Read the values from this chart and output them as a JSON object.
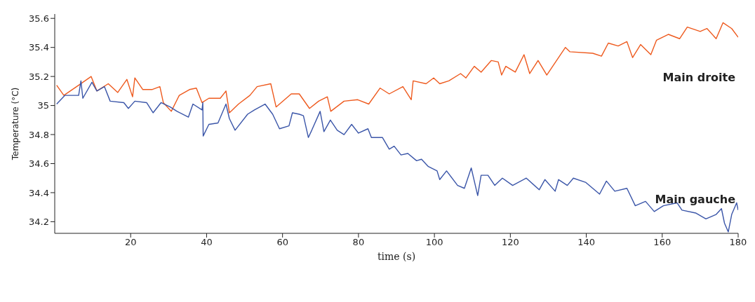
{
  "chart_data": {
    "type": "line",
    "xlabel": "time (s)",
    "ylabel": "Temperature (°C)",
    "xlim": [
      0,
      180
    ],
    "xticks": [
      20,
      40,
      60,
      80,
      100,
      120,
      140,
      160,
      180
    ],
    "ylim": [
      34.12,
      35.63
    ],
    "yticks": [
      34.2,
      34.4,
      34.6,
      34.8,
      35,
      35.2,
      35.4,
      35.6
    ],
    "grid": false,
    "legend": false,
    "marker": "none",
    "line_style": "solid",
    "series": [
      {
        "name": "Main droite",
        "color": "#ee5a1e",
        "x": [
          0.5,
          2.4,
          6.3,
          9.6,
          11.1,
          14.1,
          16.6,
          19.0,
          20.5,
          21.1,
          23.2,
          25.6,
          27.7,
          28.6,
          30.7,
          32.8,
          35.5,
          37.3,
          38.8,
          40.6,
          43.6,
          45.1,
          46.0,
          48.4,
          51.4,
          53.3,
          56.9,
          58.3,
          62.3,
          64.4,
          67.1,
          69.5,
          71.8,
          72.7,
          76.2,
          79.8,
          82.7,
          85.7,
          88.1,
          91.7,
          93.9,
          94.4,
          97.8,
          99.8,
          101.4,
          103.8,
          106.9,
          108.3,
          110.5,
          112.3,
          115.0,
          116.8,
          117.7,
          118.8,
          121.3,
          123.6,
          125.1,
          127.3,
          129.6,
          132.7,
          134.5,
          135.7,
          141.7,
          144.0,
          145.8,
          148.4,
          150.7,
          152.2,
          154.3,
          157.0,
          158.5,
          161.6,
          164.6,
          166.6,
          170.0,
          171.8,
          174.2,
          176.0,
          178.3,
          180.0
        ],
        "values": [
          35.14,
          35.07,
          35.14,
          35.2,
          35.1,
          35.15,
          35.09,
          35.18,
          35.06,
          35.19,
          35.11,
          35.11,
          35.13,
          35.02,
          34.96,
          35.07,
          35.11,
          35.12,
          35.02,
          35.05,
          35.05,
          35.1,
          34.95,
          35.01,
          35.07,
          35.13,
          35.15,
          34.99,
          35.08,
          35.08,
          34.98,
          35.03,
          35.06,
          34.96,
          35.03,
          35.04,
          35.01,
          35.12,
          35.08,
          35.13,
          35.04,
          35.17,
          35.15,
          35.19,
          35.15,
          35.17,
          35.22,
          35.19,
          35.27,
          35.23,
          35.31,
          35.3,
          35.21,
          35.27,
          35.23,
          35.35,
          35.22,
          35.31,
          35.21,
          35.33,
          35.4,
          35.37,
          35.36,
          35.34,
          35.43,
          35.41,
          35.44,
          35.33,
          35.42,
          35.35,
          35.45,
          35.49,
          35.46,
          35.54,
          35.51,
          35.53,
          35.46,
          35.57,
          35.53,
          35.47
        ]
      },
      {
        "name": "Main gauche",
        "color": "#3a55a8",
        "x": [
          0.5,
          2.7,
          6.3,
          6.9,
          7.4,
          9.8,
          11.1,
          13.1,
          14.6,
          18.2,
          19.4,
          21.1,
          24.2,
          25.9,
          28.0,
          30.4,
          32.2,
          35.2,
          36.4,
          38.8,
          39.0,
          39.1,
          40.6,
          43.0,
          45.1,
          46.0,
          47.5,
          50.8,
          52.6,
          55.4,
          57.4,
          59.2,
          61.7,
          62.6,
          64.4,
          65.5,
          66.8,
          67.7,
          69.9,
          70.9,
          72.6,
          74.4,
          76.2,
          78.2,
          80.0,
          82.5,
          83.4,
          86.3,
          88.1,
          89.4,
          91.2,
          93.0,
          95.3,
          96.6,
          98.4,
          100.7,
          101.4,
          103.2,
          106.1,
          107.9,
          109.7,
          111.4,
          112.3,
          114.1,
          115.9,
          117.9,
          120.6,
          124.2,
          127.6,
          129.1,
          131.8,
          132.7,
          135.0,
          136.6,
          139.9,
          143.5,
          145.3,
          147.5,
          150.7,
          152.9,
          155.6,
          157.9,
          160.3,
          163.9,
          165.2,
          168.8,
          171.5,
          174.2,
          175.6,
          176.4,
          177.4,
          178.3,
          179.6,
          180.0
        ],
        "values": [
          35.01,
          35.07,
          35.07,
          35.17,
          35.05,
          35.16,
          35.1,
          35.13,
          35.03,
          35.02,
          34.98,
          35.03,
          35.02,
          34.95,
          35.02,
          34.99,
          34.96,
          34.92,
          35.01,
          34.97,
          35.02,
          34.79,
          34.87,
          34.88,
          35.01,
          34.91,
          34.83,
          34.94,
          34.97,
          35.01,
          34.94,
          34.84,
          34.86,
          34.95,
          34.94,
          34.93,
          34.78,
          34.83,
          34.96,
          34.82,
          34.9,
          34.83,
          34.8,
          34.87,
          34.81,
          34.84,
          34.78,
          34.78,
          34.7,
          34.72,
          34.66,
          34.67,
          34.62,
          34.63,
          34.58,
          34.55,
          34.49,
          34.55,
          34.45,
          34.43,
          34.57,
          34.38,
          34.52,
          34.52,
          34.45,
          34.5,
          34.45,
          34.5,
          34.42,
          34.49,
          34.41,
          34.49,
          34.45,
          34.5,
          34.47,
          34.39,
          34.48,
          34.41,
          34.43,
          34.31,
          34.34,
          34.27,
          34.31,
          34.33,
          34.28,
          34.26,
          34.22,
          34.25,
          34.29,
          34.19,
          34.13,
          34.25,
          34.33,
          34.28
        ]
      }
    ]
  }
}
